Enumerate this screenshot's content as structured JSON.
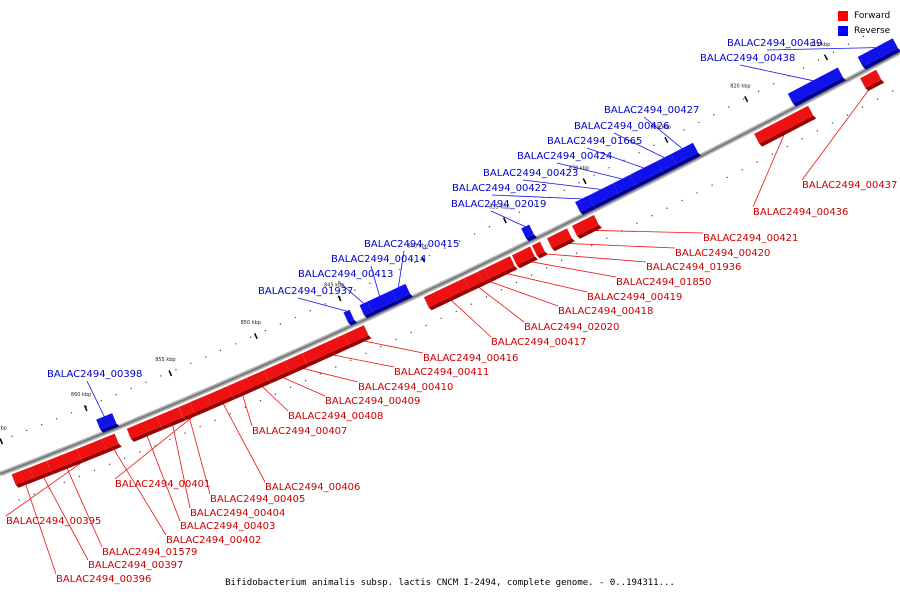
{
  "caption": "Bifidobacterium animalis subsp. lactis CNCM I-2494, complete genome. - 0..194311...",
  "legend": [
    {
      "label": "Forward",
      "color": "#ff0000"
    },
    {
      "label": "Reverse",
      "color": "#0000ff"
    }
  ],
  "colors": {
    "forward": "#ee1111",
    "reverse": "#1111ee",
    "backbone": "#888888"
  },
  "scale_labels": [
    "815 kbp",
    "820 kbp",
    "825 kbp",
    "830 kbp",
    "835 kbp",
    "840 kbp",
    "845 kbp",
    "850 kbp",
    "855 kbp",
    "860 kbp",
    "865 kbp"
  ],
  "forward_labels": [
    "BALAC2494_00437",
    "BALAC2494_00436",
    "BALAC2494_00421",
    "BALAC2494_00420",
    "BALAC2494_01936",
    "BALAC2494_01850",
    "BALAC2494_00419",
    "BALAC2494_00418",
    "BALAC2494_02020",
    "BALAC2494_00417",
    "BALAC2494_00416",
    "BALAC2494_00411",
    "BALAC2494_00410",
    "BALAC2494_00409",
    "BALAC2494_00408",
    "BALAC2494_00407",
    "BALAC2494_00406",
    "BALAC2494_00401",
    "BALAC2494_00405",
    "BALAC2494_00404",
    "BALAC2494_00403",
    "BALAC2494_00402",
    "BALAC2494_00395",
    "BALAC2494_01579",
    "BALAC2494_00397",
    "BALAC2494_00396"
  ],
  "reverse_labels": [
    "BALAC2494_00439",
    "BALAC2494_00438",
    "BALAC2494_00427",
    "BALAC2494_00426",
    "BALAC2494_01665",
    "BALAC2494_00424",
    "BALAC2494_00423",
    "BALAC2494_00422",
    "BALAC2494_02019",
    "BALAC2494_00415",
    "BALAC2494_00414",
    "BALAC2494_00413",
    "BALAC2494_01937",
    "BALAC2494_00398"
  ]
}
